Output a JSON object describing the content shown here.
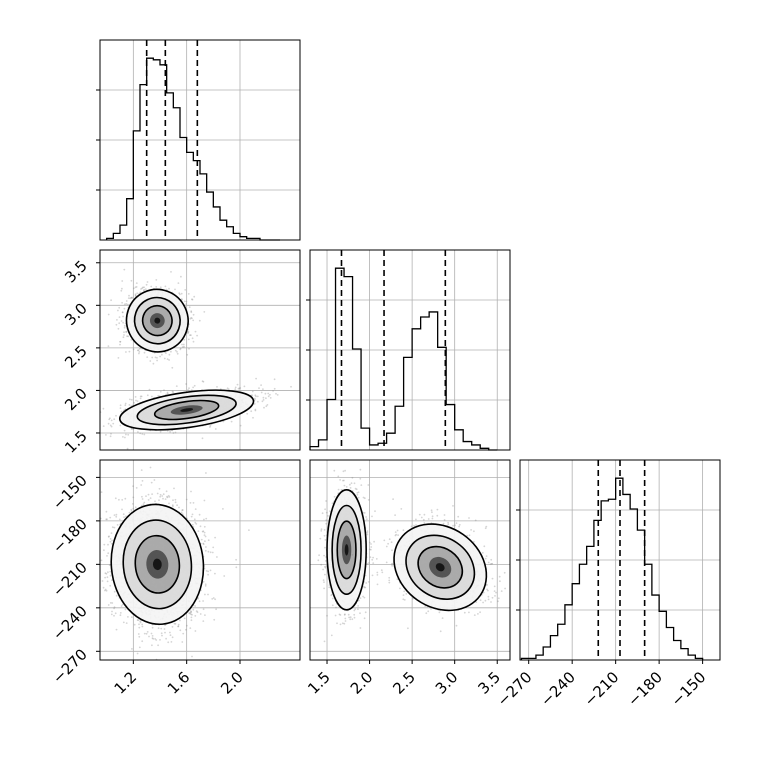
{
  "chart_data": {
    "type": "corner",
    "grid": true,
    "params": [
      {
        "range": [
          0.95,
          2.45
        ],
        "ticks": [
          "1.2",
          "1.6",
          "2.0"
        ],
        "tick_values": [
          1.2,
          1.6,
          2.0
        ]
      },
      {
        "range": [
          1.3,
          3.65
        ],
        "ticks": [
          "1.5",
          "2.0",
          "2.5",
          "3.0",
          "3.5"
        ],
        "tick_values": [
          1.5,
          2.0,
          2.5,
          3.0,
          3.5
        ]
      },
      {
        "range": [
          -276,
          -138
        ],
        "ticks": [
          "−270",
          "−240",
          "−210",
          "−180",
          "−150"
        ],
        "tick_values": [
          -270,
          -240,
          -210,
          -180,
          -150
        ]
      }
    ],
    "histograms": [
      {
        "param": 0,
        "bin_edges": [
          1.0,
          1.05,
          1.1,
          1.15,
          1.2,
          1.25,
          1.3,
          1.35,
          1.4,
          1.45,
          1.5,
          1.55,
          1.6,
          1.65,
          1.7,
          1.75,
          1.8,
          1.85,
          1.9,
          1.95,
          2.0,
          2.05,
          2.1,
          2.15,
          2.2,
          2.25,
          2.3
        ],
        "counts": [
          1,
          4,
          9,
          25,
          66,
          94,
          110,
          109,
          106,
          89,
          80,
          62,
          53,
          48,
          40,
          29,
          20,
          12,
          8,
          4,
          2,
          1,
          1,
          0,
          0,
          0
        ],
        "quantiles": [
          1.3,
          1.44,
          1.68
        ]
      },
      {
        "param": 1,
        "bin_edges": [
          1.3,
          1.4,
          1.5,
          1.6,
          1.7,
          1.8,
          1.9,
          2.0,
          2.1,
          2.2,
          2.3,
          2.4,
          2.5,
          2.6,
          2.7,
          2.8,
          2.9,
          3.0,
          3.1,
          3.2,
          3.3,
          3.4,
          3.5
        ],
        "counts": [
          2,
          6,
          30,
          108,
          103,
          60,
          13,
          3,
          4,
          10,
          26,
          55,
          72,
          79,
          82,
          61,
          27,
          12,
          5,
          3,
          1,
          0
        ],
        "quantiles": [
          1.67,
          2.17,
          2.89
        ]
      },
      {
        "param": 2,
        "bin_edges": [
          -275,
          -270,
          -265,
          -260,
          -255,
          -250,
          -245,
          -240,
          -235,
          -230,
          -225,
          -220,
          -215,
          -210,
          -205,
          -200,
          -195,
          -190,
          -185,
          -180,
          -175,
          -170,
          -165,
          -160,
          -155,
          -150
        ],
        "counts": [
          1,
          1,
          3,
          8,
          15,
          22,
          34,
          47,
          59,
          70,
          86,
          98,
          99,
          112,
          102,
          93,
          80,
          59,
          40,
          30,
          20,
          12,
          7,
          3,
          1
        ],
        "quantiles": [
          -222,
          -207,
          -190
        ]
      }
    ],
    "joint": [
      {
        "x_param": 0,
        "y_param": 1,
        "modes": [
          {
            "x": 1.38,
            "y": 2.82
          },
          {
            "x": 1.6,
            "y": 1.77
          }
        ]
      },
      {
        "x_param": 0,
        "y_param": 2,
        "modes": [
          {
            "x": 1.38,
            "y": -210
          }
        ]
      },
      {
        "x_param": 1,
        "y_param": 2,
        "modes": [
          {
            "x": 1.73,
            "y": -200
          },
          {
            "x": 2.83,
            "y": -212
          }
        ]
      }
    ],
    "colors": {
      "line": "#000000",
      "grid": "#b0b0b0",
      "scatter": "#888888",
      "fill_levels": [
        "#f4f4f4",
        "#d9d9d9",
        "#a6a6a6",
        "#4d4d4d",
        "#111111"
      ]
    }
  }
}
